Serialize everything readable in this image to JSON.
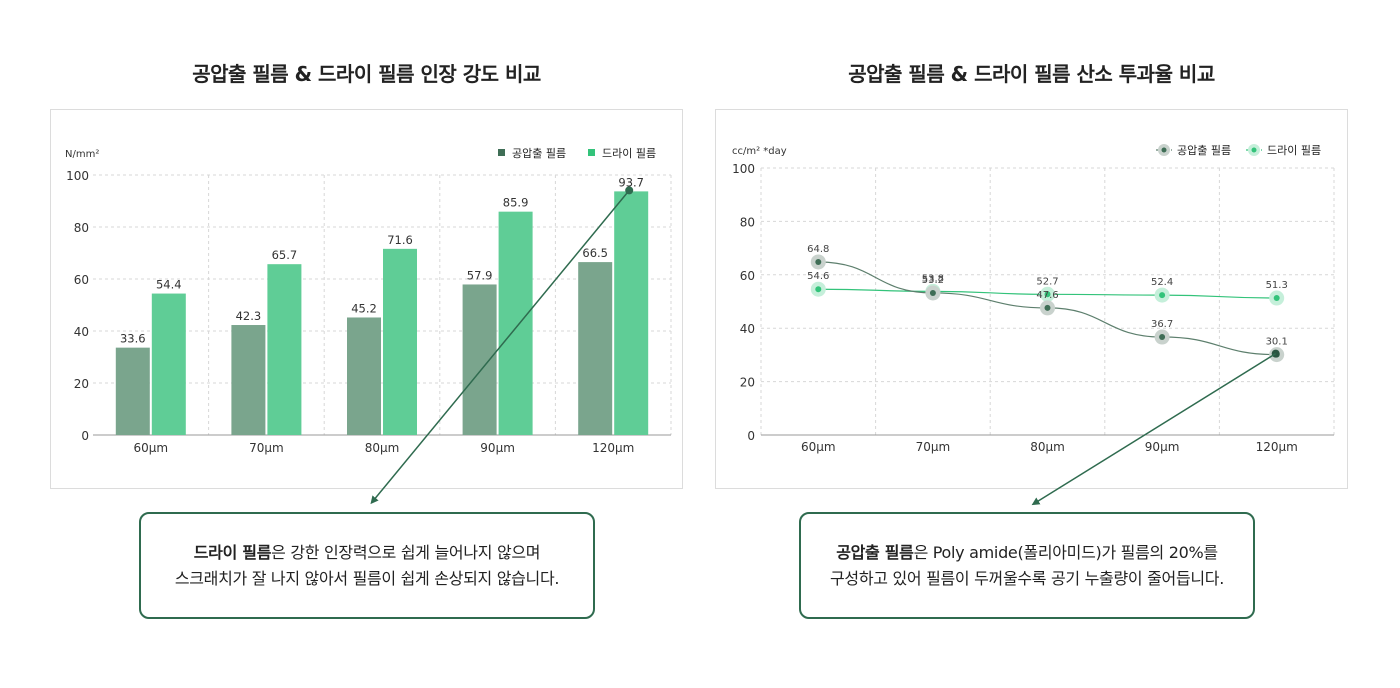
{
  "colors": {
    "dark_series": "#7aa58d",
    "light_series": "#5fcd96",
    "dark_point": "#3f6e56",
    "light_point": "#33c37a",
    "grid": "#d7d7d7",
    "arrow": "#2f6b4f"
  },
  "left": {
    "title": "공압출 필름 & 드라이 필름 인장 강도 비교",
    "callout": {
      "bold": "드라이 필름",
      "line1_rest": "은 강한 인장력으로 쉽게 늘어나지 않으며",
      "line2": "스크래치가 잘 나지 않아서 필름이 쉽게 손상되지 않습니다."
    }
  },
  "right": {
    "title": "공압출 필름 & 드라이 필름 산소 투과율 비교",
    "callout": {
      "bold": "공압출 필름",
      "line1_rest": "은 Poly amide(폴리아미드)가 필름의 20%를",
      "line2": "구성하고 있어 필름이 두꺼울수록 공기 누출량이 줄어듭니다."
    }
  },
  "chart_data": [
    {
      "type": "bar",
      "title": "공압출 필름 & 드라이 필름 인장 강도 비교",
      "ylabel": "N/mm²",
      "categories": [
        "60μm",
        "70μm",
        "80μm",
        "90μm",
        "120μm"
      ],
      "yticks": [
        "0",
        "20",
        "40",
        "60",
        "80",
        "100"
      ],
      "ylim": [
        0,
        100
      ],
      "legend_position": "top-right",
      "grid": true,
      "series": [
        {
          "name": "공압출 필름",
          "values": [
            33.6,
            42.3,
            45.2,
            57.9,
            66.5
          ]
        },
        {
          "name": "드라이 필름",
          "values": [
            54.4,
            65.7,
            71.6,
            85.9,
            93.7
          ]
        }
      ]
    },
    {
      "type": "line",
      "title": "공압출 필름 & 드라이 필름 산소 투과율 비교",
      "ylabel": "cc/m² *day",
      "categories": [
        "60μm",
        "70μm",
        "80μm",
        "90μm",
        "120μm"
      ],
      "yticks": [
        "0",
        "20",
        "40",
        "60",
        "80",
        "100"
      ],
      "ylim": [
        0,
        100
      ],
      "legend_position": "top-right",
      "grid": true,
      "series": [
        {
          "name": "공압출 필름",
          "values": [
            64.8,
            53.2,
            47.6,
            36.7,
            30.1
          ]
        },
        {
          "name": "드라이 필름",
          "values": [
            54.6,
            53.8,
            52.7,
            52.4,
            51.3
          ]
        }
      ]
    }
  ]
}
